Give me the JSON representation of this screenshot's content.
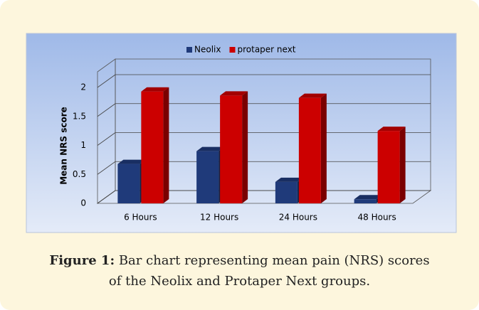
{
  "chart_data": {
    "type": "bar3d",
    "categories": [
      "6 Hours",
      "12 Hours",
      "24 Hours",
      "48 Hours"
    ],
    "series": [
      {
        "name": "Neolix",
        "color": "#1f3a7a",
        "values": [
          0.68,
          0.9,
          0.37,
          0.07
        ]
      },
      {
        "name": "protaper next",
        "color": "#cc0000",
        "values": [
          1.93,
          1.86,
          1.82,
          1.25
        ]
      }
    ],
    "ylabel": "Mean NRS score",
    "ylim": [
      0,
      2
    ],
    "yticks": [
      0,
      0.5,
      1,
      1.5,
      2
    ],
    "grid": true,
    "legend": "top"
  },
  "caption": {
    "label": "Figure 1:",
    "text": "Bar chart representing mean pain (NRS) scores of the Neolix and Protaper Next groups."
  }
}
